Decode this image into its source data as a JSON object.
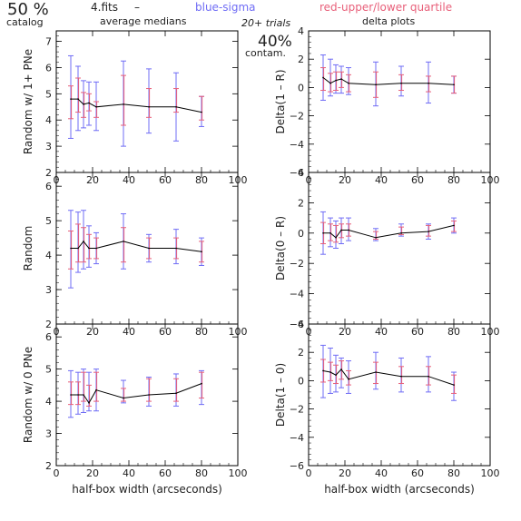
{
  "header": {
    "percent_top": "50 %",
    "catalog": "catalog",
    "fits": "4.fits",
    "dash": "–",
    "average_medians": "average medians",
    "blue_sigma": "blue-sigma",
    "red_quartile": "red-upper/lower quartile",
    "trials": "20+ trials",
    "delta_plots": "delta plots",
    "contam_pct": "40%",
    "contam": "contam."
  },
  "colors": {
    "blue": "#6f6cf5",
    "red": "#e8607a",
    "line": "#000000"
  },
  "chart_data": [
    {
      "type": "line",
      "id": "p1",
      "ylabel": "Random w/ 1+ PNe",
      "xlabel": "",
      "xlim": [
        0,
        100
      ],
      "ylim": [
        2,
        7.4
      ],
      "xticks": [
        0,
        20,
        40,
        60,
        80,
        100
      ],
      "yticks": [
        2,
        3,
        4,
        5,
        6,
        7
      ],
      "x": [
        8,
        12,
        15,
        18,
        22,
        37,
        51,
        66,
        80
      ],
      "y": [
        4.8,
        4.8,
        4.6,
        4.65,
        4.5,
        4.6,
        4.5,
        4.5,
        4.3
      ],
      "sigma_lo": [
        3.3,
        3.6,
        3.7,
        3.8,
        3.6,
        3.0,
        3.5,
        3.2,
        3.75
      ],
      "sigma_hi": [
        6.45,
        6.05,
        5.5,
        5.45,
        5.45,
        6.25,
        5.95,
        5.8,
        4.9
      ],
      "q_lo": [
        4.05,
        4.3,
        4.1,
        4.35,
        4.1,
        3.8,
        4.1,
        4.3,
        4.0
      ],
      "q_hi": [
        5.3,
        5.6,
        5.05,
        5.0,
        4.7,
        5.7,
        5.2,
        5.2,
        4.9
      ]
    },
    {
      "type": "line",
      "id": "p2",
      "ylabel": "Delta(1 – R)",
      "xlabel": "",
      "xlim": [
        0,
        100
      ],
      "ylim": [
        -6,
        4
      ],
      "xticks": [
        0,
        20,
        40,
        60,
        80,
        100
      ],
      "yticks": [
        -6,
        -4,
        -2,
        0,
        2,
        4
      ],
      "x": [
        8,
        12,
        15,
        18,
        22,
        37,
        51,
        66,
        80
      ],
      "y": [
        0.7,
        0.3,
        0.5,
        0.6,
        0.3,
        0.2,
        0.3,
        0.3,
        0.2
      ],
      "sigma_lo": [
        -0.9,
        -0.6,
        -0.4,
        -0.4,
        -0.5,
        -1.3,
        -0.6,
        -1.1,
        -0.4
      ],
      "sigma_hi": [
        2.3,
        2.0,
        1.6,
        1.5,
        1.4,
        1.8,
        1.5,
        1.8,
        0.8
      ],
      "q_lo": [
        -0.2,
        -0.3,
        -0.2,
        0.0,
        -0.3,
        -0.7,
        -0.2,
        -0.3,
        -0.4
      ],
      "q_hi": [
        1.4,
        1.0,
        1.1,
        1.1,
        0.9,
        1.1,
        0.9,
        0.8,
        0.8
      ]
    },
    {
      "type": "line",
      "id": "p3",
      "ylabel": "Random",
      "xlabel": "",
      "xlim": [
        0,
        100
      ],
      "ylim": [
        2,
        6.4
      ],
      "xticks": [
        0,
        20,
        40,
        60,
        80,
        100
      ],
      "yticks": [
        2,
        3,
        4,
        5,
        6
      ],
      "x": [
        8,
        12,
        15,
        18,
        22,
        37,
        51,
        66,
        80
      ],
      "y": [
        4.2,
        4.2,
        4.4,
        4.2,
        4.2,
        4.4,
        4.2,
        4.2,
        4.1
      ],
      "sigma_lo": [
        3.05,
        3.5,
        3.6,
        3.65,
        3.75,
        3.6,
        3.8,
        3.75,
        3.7
      ],
      "sigma_hi": [
        5.3,
        5.25,
        5.3,
        4.85,
        4.65,
        5.2,
        4.6,
        4.75,
        4.5
      ],
      "q_lo": [
        3.6,
        3.8,
        3.8,
        3.9,
        3.9,
        3.8,
        3.9,
        3.9,
        3.8
      ],
      "q_hi": [
        4.7,
        4.9,
        4.8,
        4.6,
        4.5,
        4.8,
        4.5,
        4.5,
        4.4
      ]
    },
    {
      "type": "line",
      "id": "p4",
      "ylabel": "Delta(0 – R)",
      "xlabel": "",
      "xlim": [
        0,
        100
      ],
      "ylim": [
        -6,
        4
      ],
      "xticks": [
        0,
        20,
        40,
        60,
        80,
        100
      ],
      "yticks": [
        -6,
        -4,
        -2,
        0,
        2,
        4
      ],
      "x": [
        8,
        12,
        15,
        18,
        22,
        37,
        51,
        66,
        80
      ],
      "y": [
        0.0,
        0.0,
        -0.3,
        0.2,
        0.2,
        -0.3,
        0.0,
        0.1,
        0.5
      ],
      "sigma_lo": [
        -1.4,
        -0.9,
        -1.0,
        -0.7,
        -0.5,
        -0.5,
        -0.2,
        -0.4,
        0.0
      ],
      "sigma_hi": [
        1.4,
        1.0,
        0.8,
        1.0,
        1.0,
        0.3,
        0.6,
        0.6,
        1.0
      ],
      "q_lo": [
        -0.7,
        -0.5,
        -0.6,
        -0.3,
        -0.2,
        -0.4,
        -0.1,
        -0.2,
        0.1
      ],
      "q_hi": [
        0.7,
        0.6,
        0.5,
        0.6,
        0.6,
        0.1,
        0.4,
        0.5,
        0.8
      ]
    },
    {
      "type": "line",
      "id": "p5",
      "ylabel": "Random w/ 0 PNe",
      "xlabel": "half-box width (arcseconds)",
      "xlim": [
        0,
        100
      ],
      "ylim": [
        2,
        6.4
      ],
      "xticks": [
        0,
        20,
        40,
        60,
        80,
        100
      ],
      "yticks": [
        2,
        3,
        4,
        5,
        6
      ],
      "x": [
        8,
        12,
        15,
        18,
        22,
        37,
        51,
        66,
        80
      ],
      "y": [
        4.2,
        4.2,
        4.2,
        3.95,
        4.35,
        4.1,
        4.2,
        4.25,
        4.55
      ],
      "sigma_lo": [
        3.5,
        3.6,
        3.65,
        3.7,
        3.7,
        3.95,
        3.85,
        3.85,
        3.9
      ],
      "sigma_hi": [
        4.95,
        4.9,
        5.0,
        4.9,
        5.0,
        4.65,
        4.75,
        4.85,
        4.95
      ],
      "q_lo": [
        3.9,
        3.9,
        4.0,
        3.85,
        4.0,
        4.0,
        4.0,
        4.0,
        4.1
      ],
      "q_hi": [
        4.6,
        4.6,
        4.9,
        4.5,
        4.9,
        4.4,
        4.7,
        4.7,
        4.9
      ]
    },
    {
      "type": "line",
      "id": "p6",
      "ylabel": "Delta(1 – 0)",
      "xlabel": "half-box width (arcseconds)",
      "xlim": [
        0,
        100
      ],
      "ylim": [
        -6,
        4
      ],
      "xticks": [
        0,
        20,
        40,
        60,
        80,
        100
      ],
      "yticks": [
        -6,
        -4,
        -2,
        0,
        2,
        4
      ],
      "x": [
        8,
        12,
        15,
        18,
        22,
        37,
        51,
        66,
        80
      ],
      "y": [
        0.7,
        0.6,
        0.4,
        0.8,
        0.1,
        0.6,
        0.3,
        0.3,
        -0.3
      ],
      "sigma_lo": [
        -1.2,
        -0.9,
        -0.8,
        -0.5,
        -0.9,
        -0.6,
        -0.8,
        -0.8,
        -1.4
      ],
      "sigma_hi": [
        2.5,
        2.3,
        1.8,
        1.6,
        1.4,
        2.0,
        1.6,
        1.7,
        0.6
      ],
      "q_lo": [
        -0.1,
        0.0,
        -0.2,
        0.1,
        -0.3,
        -0.2,
        -0.2,
        -0.3,
        -0.9
      ],
      "q_hi": [
        1.5,
        1.3,
        1.1,
        1.4,
        0.7,
        1.3,
        1.0,
        1.0,
        0.4
      ]
    }
  ]
}
